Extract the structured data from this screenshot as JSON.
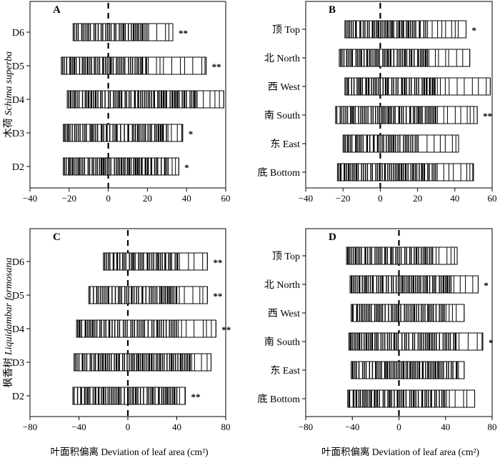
{
  "figure": {
    "x_axis_label": "叶面积偏离 Deviation of leaf area (cm²)"
  },
  "chart_data": [
    {
      "type": "barcode",
      "panel": "A",
      "ylabel": "木荷 Schima superba",
      "xlabel": "",
      "xlim": [
        -40,
        60
      ],
      "xticks": [
        -40,
        -20,
        0,
        20,
        40,
        60
      ],
      "categories": [
        "D6",
        "D5",
        "D4",
        "D3",
        "D2"
      ],
      "series": [
        {
          "label": "D6",
          "min": -18,
          "max": 33,
          "dense_max": 20,
          "significance": "**"
        },
        {
          "label": "D5",
          "min": -24,
          "max": 50,
          "dense_max": 20,
          "significance": "**"
        },
        {
          "label": "D4",
          "min": -21,
          "max": 59,
          "dense_max": 45,
          "significance": ""
        },
        {
          "label": "D3",
          "min": -23,
          "max": 38,
          "dense_max": 30,
          "significance": "*"
        },
        {
          "label": "D2",
          "min": -23,
          "max": 36,
          "dense_max": 30,
          "significance": "*"
        }
      ]
    },
    {
      "type": "barcode",
      "panel": "B",
      "xlabel": "",
      "xlim": [
        -40,
        60
      ],
      "xticks": [
        -40,
        -20,
        0,
        20,
        40,
        60
      ],
      "categories": [
        "顶 Top",
        "北 North",
        "西 West",
        "南 South",
        "东 East",
        "底 Bottom"
      ],
      "series": [
        {
          "label": "顶 Top",
          "min": -19,
          "max": 46,
          "dense_max": 25,
          "significance": "*"
        },
        {
          "label": "北 North",
          "min": -22,
          "max": 48,
          "dense_max": 25,
          "significance": ""
        },
        {
          "label": "西 West",
          "min": -19,
          "max": 59,
          "dense_max": 30,
          "significance": ""
        },
        {
          "label": "南 South",
          "min": -24,
          "max": 52,
          "dense_max": 30,
          "significance": "**"
        },
        {
          "label": "东 East",
          "min": -20,
          "max": 42,
          "dense_max": 20,
          "significance": ""
        },
        {
          "label": "底 Bottom",
          "min": -23,
          "max": 50,
          "dense_max": 30,
          "significance": ""
        }
      ]
    },
    {
      "type": "barcode",
      "panel": "C",
      "ylabel": "枫香树 Liquidambar formosana",
      "xlabel": "",
      "xlim": [
        -80,
        80
      ],
      "xticks": [
        -80,
        -40,
        0,
        40,
        80
      ],
      "categories": [
        "D6",
        "D5",
        "D4",
        "D3",
        "D2"
      ],
      "series": [
        {
          "label": "D6",
          "min": -20,
          "max": 65,
          "dense_max": 40,
          "significance": "**"
        },
        {
          "label": "D5",
          "min": -32,
          "max": 65,
          "dense_max": 40,
          "significance": "**"
        },
        {
          "label": "D4",
          "min": -42,
          "max": 72,
          "dense_max": 40,
          "significance": "**"
        },
        {
          "label": "D3",
          "min": -44,
          "max": 68,
          "dense_max": 50,
          "significance": ""
        },
        {
          "label": "D2",
          "min": -45,
          "max": 47,
          "dense_max": 40,
          "significance": "**"
        }
      ]
    },
    {
      "type": "barcode",
      "panel": "D",
      "xlabel": "",
      "xlim": [
        -80,
        80
      ],
      "xticks": [
        -80,
        -40,
        0,
        40,
        80
      ],
      "categories": [
        "顶 Top",
        "北 North",
        "西 West",
        "南 South",
        "东 East",
        "底 Bottom"
      ],
      "series": [
        {
          "label": "顶 Top",
          "min": -45,
          "max": 50,
          "dense_max": 30,
          "significance": ""
        },
        {
          "label": "北 North",
          "min": -42,
          "max": 68,
          "dense_max": 45,
          "significance": "*"
        },
        {
          "label": "西 West",
          "min": -41,
          "max": 56,
          "dense_max": 40,
          "significance": ""
        },
        {
          "label": "南 South",
          "min": -43,
          "max": 72,
          "dense_max": 50,
          "significance": "*"
        },
        {
          "label": "东 East",
          "min": -41,
          "max": 56,
          "dense_max": 50,
          "significance": ""
        },
        {
          "label": "底 Bottom",
          "min": -44,
          "max": 65,
          "dense_max": 40,
          "significance": ""
        }
      ]
    }
  ]
}
